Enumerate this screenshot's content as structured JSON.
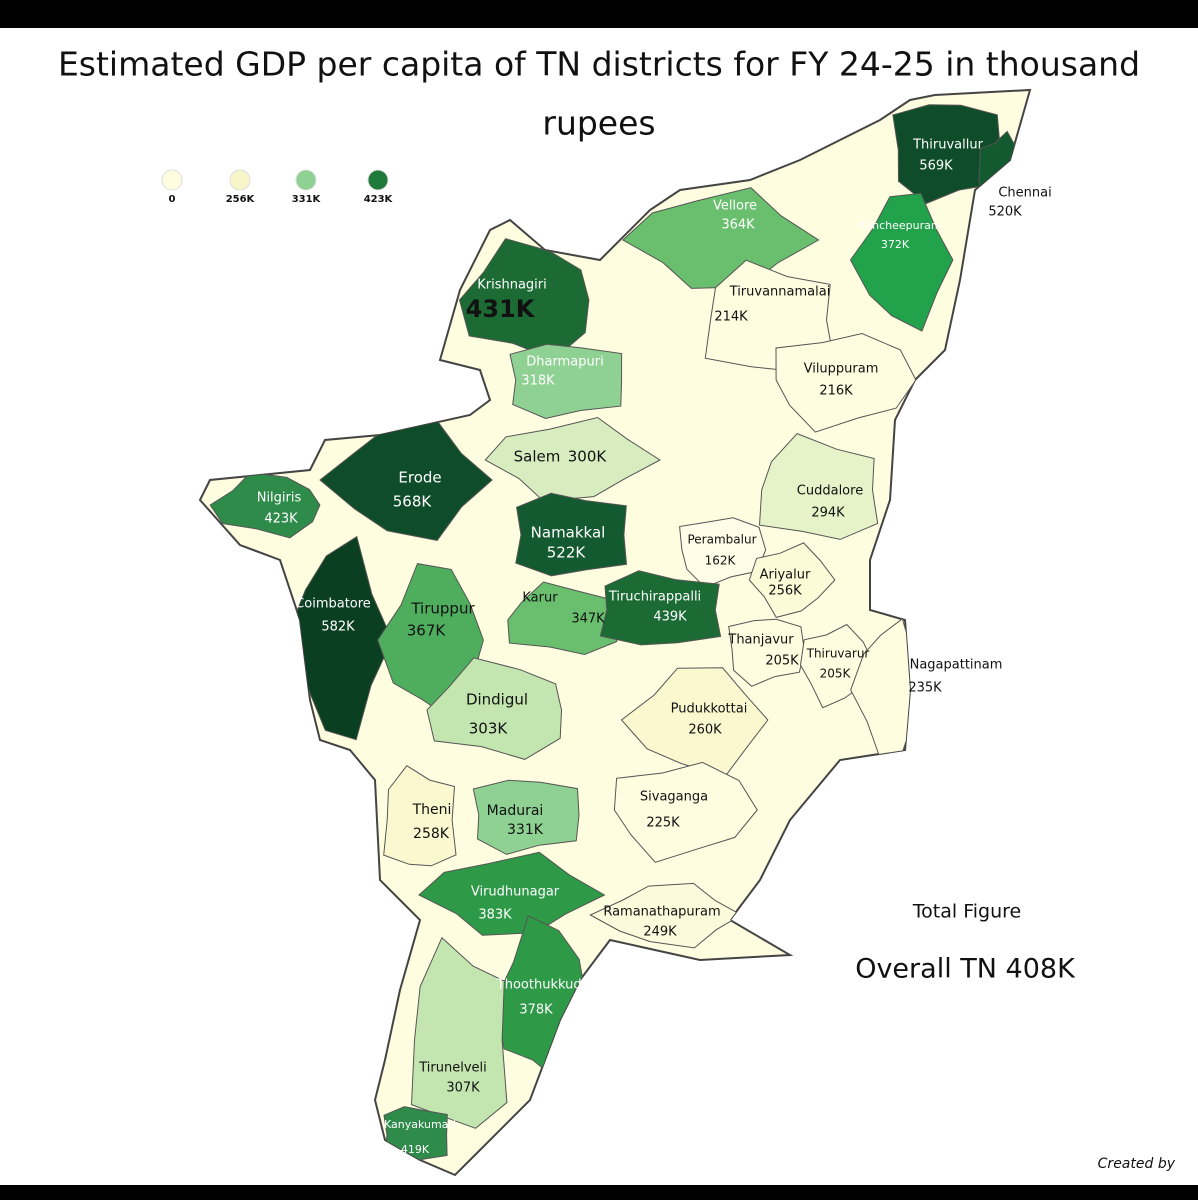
{
  "header": {
    "title_line1": "Estimated GDP per capita of TN districts for FY 24-25 in thousand",
    "title_line2": "rupees"
  },
  "legend": [
    {
      "label": "0",
      "color": "#fffde0"
    },
    {
      "label": "256K",
      "color": "#f8f6c8"
    },
    {
      "label": "331K",
      "color": "#8fd193"
    },
    {
      "label": "423K",
      "color": "#1f7a3a"
    }
  ],
  "districts": [
    {
      "name": "Thiruvallur",
      "value": "569K",
      "color": "#0f4d2a"
    },
    {
      "name": "Chennai",
      "value": "520K",
      "color": "#145a30"
    },
    {
      "name": "Vellore",
      "value": "364K",
      "color": "#69bf6e"
    },
    {
      "name": "Kancheepuram",
      "value": "372K",
      "color": "#22a24a"
    },
    {
      "name": "Krishnagiri",
      "value": "431K",
      "color": "#1c6b35"
    },
    {
      "name": "Tiruvannamalai",
      "value": "214K",
      "color": "#fffde0"
    },
    {
      "name": "Dharmapuri",
      "value": "318K",
      "color": "#8fd193"
    },
    {
      "name": "Viluppuram",
      "value": "216K",
      "color": "#fffde0"
    },
    {
      "name": "Salem",
      "value": "300K",
      "color": "#d7edc0"
    },
    {
      "name": "Erode",
      "value": "568K",
      "color": "#0f4d2a"
    },
    {
      "name": "Nilgiris",
      "value": "423K",
      "color": "#2e8b4a"
    },
    {
      "name": "Cuddalore",
      "value": "294K",
      "color": "#e6f3c8"
    },
    {
      "name": "Namakkal",
      "value": "522K",
      "color": "#145a30"
    },
    {
      "name": "Perambalur",
      "value": "162K",
      "color": "#fffde8"
    },
    {
      "name": "Ariyalur",
      "value": "256K",
      "color": "#fbfbd8"
    },
    {
      "name": "Coimbatore",
      "value": "582K",
      "color": "#0b3f22"
    },
    {
      "name": "Tiruppur",
      "value": "367K",
      "color": "#4fae5e"
    },
    {
      "name": "Karur",
      "value": "347K",
      "color": "#69bf6e"
    },
    {
      "name": "Tiruchirappalli",
      "value": "439K",
      "color": "#1c6b35"
    },
    {
      "name": "Thanjavur",
      "value": "205K",
      "color": "#fffde0"
    },
    {
      "name": "Thiruvarur",
      "value": "205K",
      "color": "#fffde0"
    },
    {
      "name": "Nagapattinam",
      "value": "235K",
      "color": "#fffde0"
    },
    {
      "name": "Pudukkottai",
      "value": "260K",
      "color": "#fbf8d0"
    },
    {
      "name": "Dindigul",
      "value": "303K",
      "color": "#c3e6b0"
    },
    {
      "name": "Theni",
      "value": "258K",
      "color": "#fbf8d0"
    },
    {
      "name": "Madurai",
      "value": "331K",
      "color": "#8fd193"
    },
    {
      "name": "Sivaganga",
      "value": "225K",
      "color": "#fffde0"
    },
    {
      "name": "Virudhunagar",
      "value": "383K",
      "color": "#2e9a48"
    },
    {
      "name": "Ramanathapuram",
      "value": "249K",
      "color": "#fbfbdc"
    },
    {
      "name": "Thoothukkudi",
      "value": "378K",
      "color": "#2e9a48"
    },
    {
      "name": "Tirunelveli",
      "value": "307K",
      "color": "#c3e6b0"
    },
    {
      "name": "Kanyakumari",
      "value": "419K",
      "color": "#2e8b4a"
    }
  ],
  "summary": {
    "heading": "Total Figure",
    "overall": "Overall TN 408K"
  },
  "footer": {
    "credit": "Created by"
  }
}
